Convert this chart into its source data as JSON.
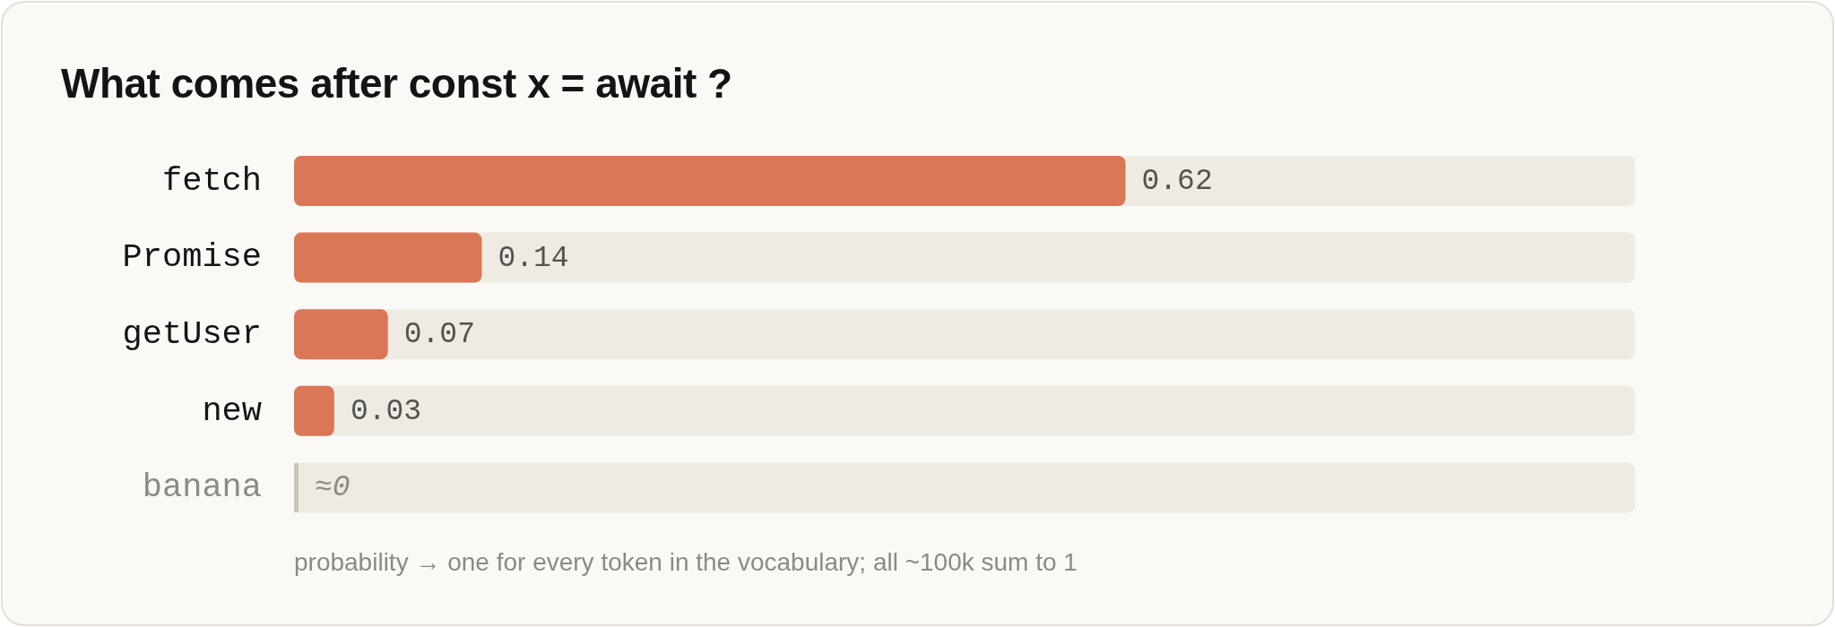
{
  "chart_data": {
    "type": "bar",
    "orientation": "horizontal",
    "title": "What comes after const x = await ?",
    "xlabel": "probability → one for every token in the vocabulary; all ~100k sum to 1",
    "categories": [
      "fetch",
      "Promise",
      "getUser",
      "new",
      "banana"
    ],
    "values": [
      0.62,
      0.14,
      0.07,
      0.03,
      0
    ],
    "colors": [
      "#d97757",
      "#d97757",
      "#d97757",
      "#d97757",
      "#c9c5bb"
    ],
    "value_labels": [
      "0.62",
      "0.14",
      "0.07",
      "0.03",
      "≈0"
    ],
    "xlim": [
      0,
      1
    ],
    "tick_labels": "y"
  }
}
